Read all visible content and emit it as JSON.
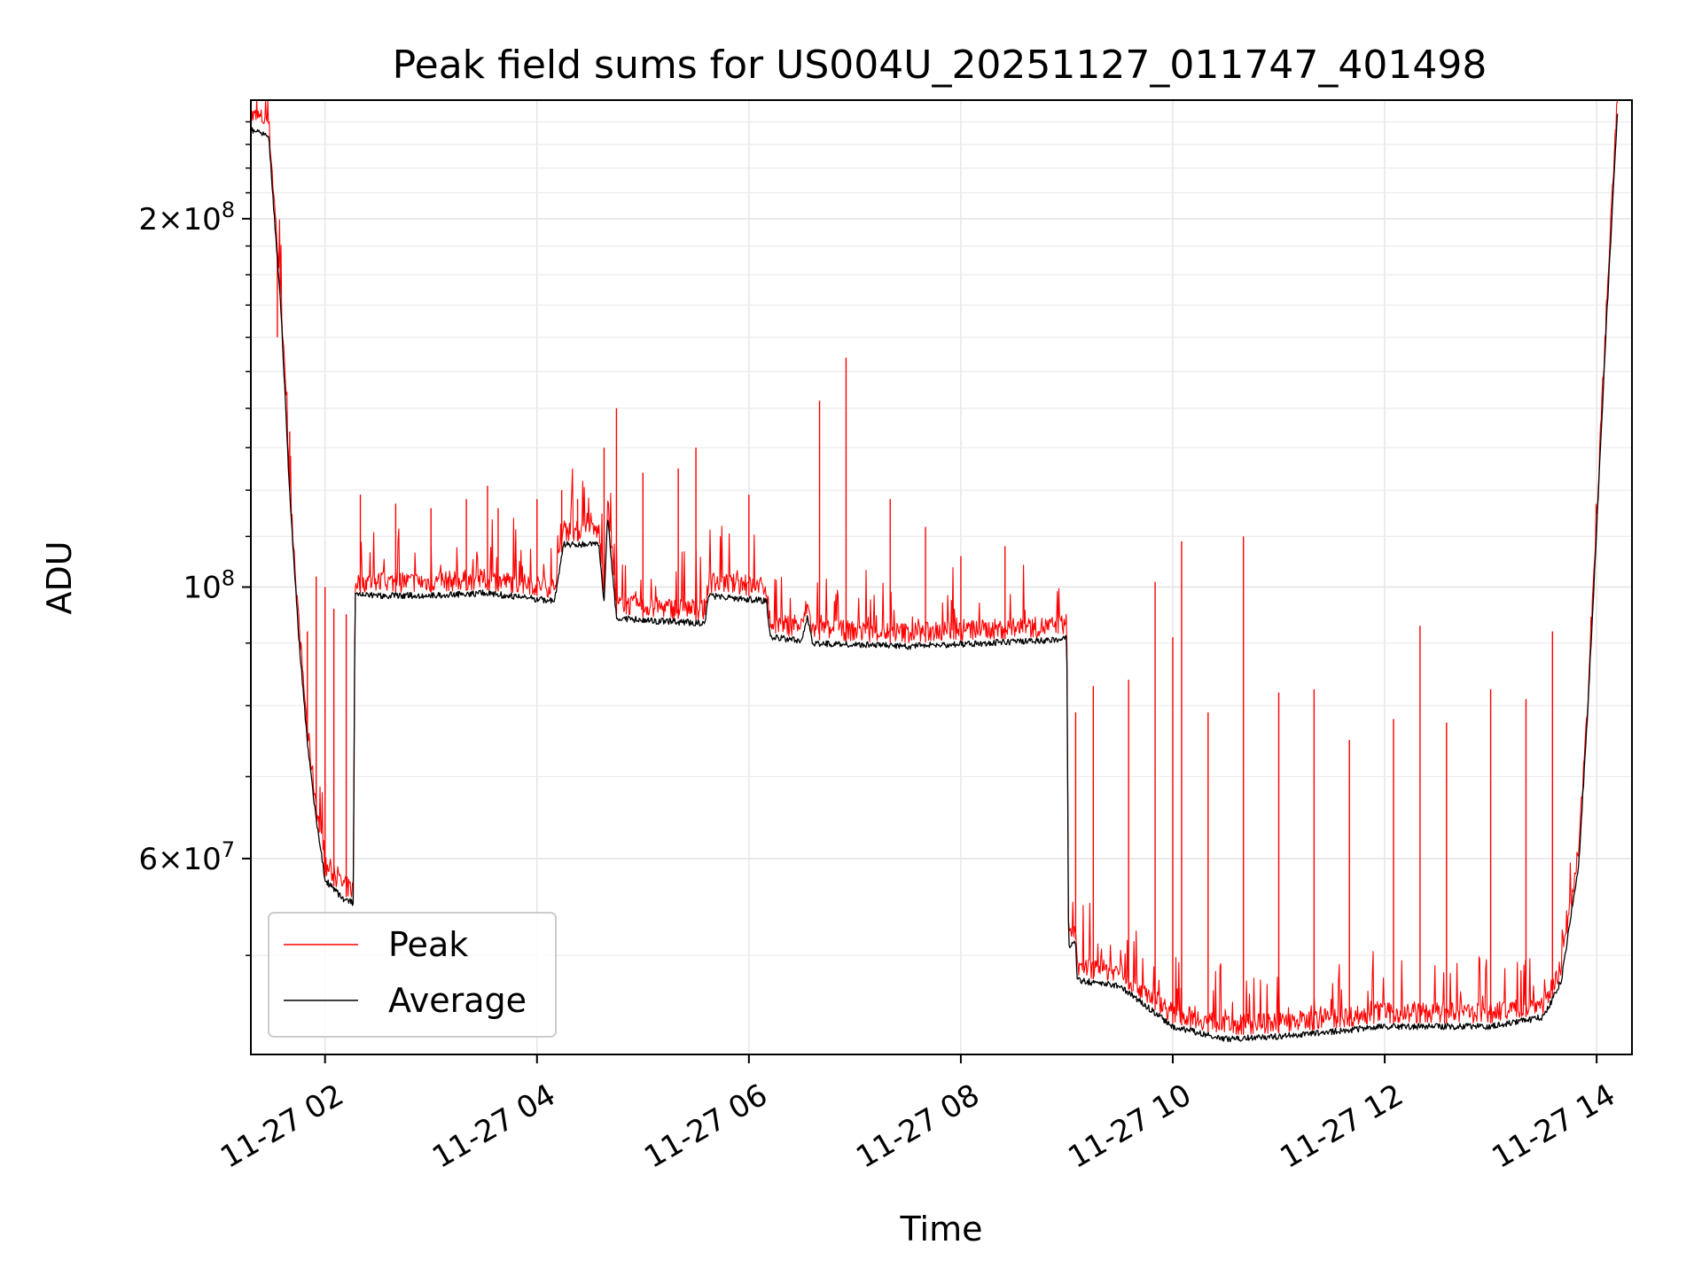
{
  "chart_data": {
    "type": "line",
    "title": "Peak field sums for US004U_20251127_011747_401498",
    "xlabel": "Time",
    "ylabel": "ADU",
    "y_scale": "log",
    "xlim": [
      "2025-11-27 01:18",
      "2025-11-27 14:20"
    ],
    "ylim": [
      41500000,
      250000000
    ],
    "x_ticks": [
      "11-27 02",
      "11-27 04",
      "11-27 06",
      "11-27 08",
      "11-27 10",
      "11-27 12",
      "11-27 14"
    ],
    "x_tick_rotation_deg": 30,
    "y_ticks": [
      {
        "value": 60000000,
        "mantissa": "6",
        "exponent": "7"
      },
      {
        "value": 100000000,
        "mantissa": "",
        "exponent": "8"
      },
      {
        "value": 200000000,
        "mantissa": "2",
        "exponent": "8"
      }
    ],
    "grid": true,
    "legend_position": "lower-left",
    "series": [
      {
        "name": "Average",
        "color": "#000000",
        "points": [
          [
            "2025-11-27 01:18",
            238000000
          ],
          [
            "2025-11-27 01:28",
            236000000
          ],
          [
            "2025-11-27 01:35",
            170000000
          ],
          [
            "2025-11-27 01:40",
            120000000
          ],
          [
            "2025-11-27 01:45",
            92000000
          ],
          [
            "2025-11-27 01:50",
            75000000
          ],
          [
            "2025-11-27 01:55",
            65000000
          ],
          [
            "2025-11-27 02:00",
            58000000
          ],
          [
            "2025-11-27 02:10",
            56000000
          ],
          [
            "2025-11-27 02:16",
            55500000
          ],
          [
            "2025-11-27 02:17",
            99000000
          ],
          [
            "2025-11-27 03:00",
            99000000
          ],
          [
            "2025-11-27 03:30",
            99500000
          ],
          [
            "2025-11-27 04:10",
            98000000
          ],
          [
            "2025-11-27 04:15",
            109000000
          ],
          [
            "2025-11-27 04:35",
            109000000
          ],
          [
            "2025-11-27 04:38",
            98000000
          ],
          [
            "2025-11-27 04:40",
            115000000
          ],
          [
            "2025-11-27 04:45",
            95000000
          ],
          [
            "2025-11-27 05:00",
            94500000
          ],
          [
            "2025-11-27 05:35",
            94000000
          ],
          [
            "2025-11-27 05:37",
            99000000
          ],
          [
            "2025-11-27 06:10",
            98000000
          ],
          [
            "2025-11-27 06:12",
            91500000
          ],
          [
            "2025-11-27 06:30",
            91000000
          ],
          [
            "2025-11-27 06:33",
            95000000
          ],
          [
            "2025-11-27 06:36",
            90500000
          ],
          [
            "2025-11-27 07:30",
            90000000
          ],
          [
            "2025-11-27 08:50",
            91000000
          ],
          [
            "2025-11-27 09:00",
            91500000
          ],
          [
            "2025-11-27 09:01",
            51000000
          ],
          [
            "2025-11-27 09:05",
            51500000
          ],
          [
            "2025-11-27 09:06",
            48000000
          ],
          [
            "2025-11-27 09:30",
            47500000
          ],
          [
            "2025-11-27 10:00",
            44000000
          ],
          [
            "2025-11-27 10:30",
            43000000
          ],
          [
            "2025-11-27 11:00",
            43200000
          ],
          [
            "2025-11-27 12:00",
            44000000
          ],
          [
            "2025-11-27 13:00",
            44000000
          ],
          [
            "2025-11-27 13:30",
            44800000
          ],
          [
            "2025-11-27 13:40",
            48000000
          ],
          [
            "2025-11-27 13:50",
            60000000
          ],
          [
            "2025-11-27 13:55",
            80000000
          ],
          [
            "2025-11-27 14:00",
            112000000
          ],
          [
            "2025-11-27 14:05",
            160000000
          ],
          [
            "2025-11-27 14:12",
            250000000
          ]
        ]
      },
      {
        "name": "Peak",
        "color": "#ff0000",
        "spikes": [
          [
            "2025-11-27 01:33",
            160000000
          ],
          [
            "2025-11-27 01:40",
            134000000
          ],
          [
            "2025-11-27 01:50",
            92000000
          ],
          [
            "2025-11-27 01:55",
            102000000
          ],
          [
            "2025-11-27 02:00",
            100000000
          ],
          [
            "2025-11-27 02:05",
            96000000
          ],
          [
            "2025-11-27 02:12",
            95000000
          ],
          [
            "2025-11-27 02:20",
            119000000
          ],
          [
            "2025-11-27 02:40",
            117000000
          ],
          [
            "2025-11-27 03:00",
            116000000
          ],
          [
            "2025-11-27 03:20",
            118000000
          ],
          [
            "2025-11-27 03:32",
            121000000
          ],
          [
            "2025-11-27 03:38",
            116000000
          ],
          [
            "2025-11-27 04:00",
            118000000
          ],
          [
            "2025-11-27 04:14",
            120000000
          ],
          [
            "2025-11-27 04:23",
            118000000
          ],
          [
            "2025-11-27 04:38",
            130000000
          ],
          [
            "2025-11-27 04:45",
            140000000
          ],
          [
            "2025-11-27 05:00",
            124000000
          ],
          [
            "2025-11-27 05:20",
            125000000
          ],
          [
            "2025-11-27 05:30",
            130000000
          ],
          [
            "2025-11-27 06:00",
            119000000
          ],
          [
            "2025-11-27 06:40",
            142000000
          ],
          [
            "2025-11-27 06:55",
            154000000
          ],
          [
            "2025-11-27 07:20",
            118000000
          ],
          [
            "2025-11-27 07:40",
            112000000
          ],
          [
            "2025-11-27 08:00",
            106000000
          ],
          [
            "2025-11-27 08:25",
            108000000
          ],
          [
            "2025-11-27 09:05",
            79000000
          ],
          [
            "2025-11-27 09:15",
            83000000
          ],
          [
            "2025-11-27 09:35",
            84000000
          ],
          [
            "2025-11-27 09:50",
            101000000
          ],
          [
            "2025-11-27 10:00",
            91000000
          ],
          [
            "2025-11-27 10:05",
            109000000
          ],
          [
            "2025-11-27 10:20",
            79000000
          ],
          [
            "2025-11-27 10:40",
            110000000
          ],
          [
            "2025-11-27 11:00",
            82000000
          ],
          [
            "2025-11-27 11:20",
            82500000
          ],
          [
            "2025-11-27 11:40",
            75000000
          ],
          [
            "2025-11-27 12:05",
            78000000
          ],
          [
            "2025-11-27 12:20",
            93000000
          ],
          [
            "2025-11-27 12:35",
            77500000
          ],
          [
            "2025-11-27 13:00",
            82500000
          ],
          [
            "2025-11-27 13:20",
            81000000
          ],
          [
            "2025-11-27 13:35",
            92000000
          ]
        ]
      }
    ]
  }
}
